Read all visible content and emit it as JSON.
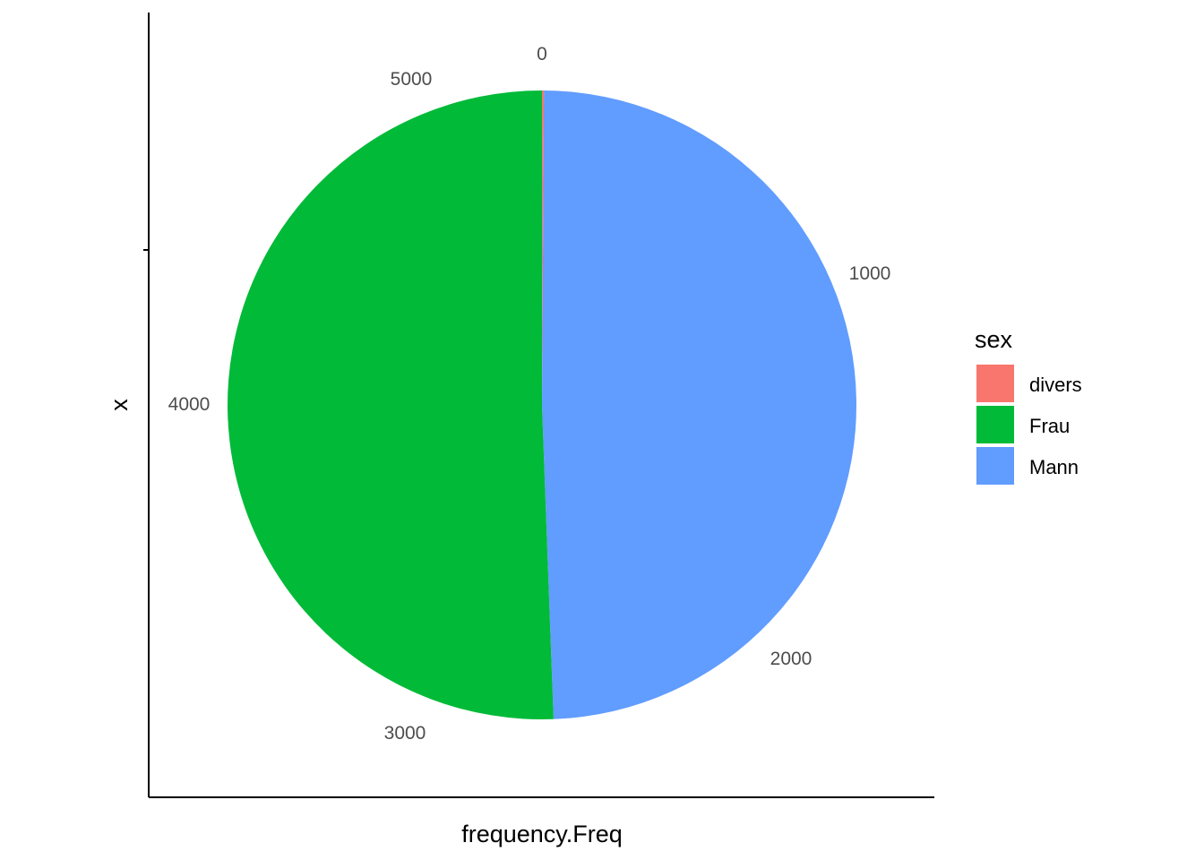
{
  "chart_data": {
    "type": "pie",
    "title": "",
    "xlabel": "frequency.Freq",
    "ylabel": "x",
    "theta_axis": {
      "min": 0,
      "max": 5120,
      "ticks": [
        0,
        1000,
        2000,
        3000,
        4000,
        5000
      ],
      "tick_labels": [
        "0",
        "1000",
        "2000",
        "3000",
        "4000",
        "5000"
      ]
    },
    "legend": {
      "title": "sex",
      "position": "right"
    },
    "slices": [
      {
        "label": "divers",
        "value": 5,
        "color": "#F8766D"
      },
      {
        "label": "Mann",
        "value": 2525,
        "color": "#619CFF"
      },
      {
        "label": "Frau",
        "value": 2590,
        "color": "#00BA38"
      }
    ],
    "legend_order": [
      "divers",
      "Frau",
      "Mann"
    ]
  }
}
